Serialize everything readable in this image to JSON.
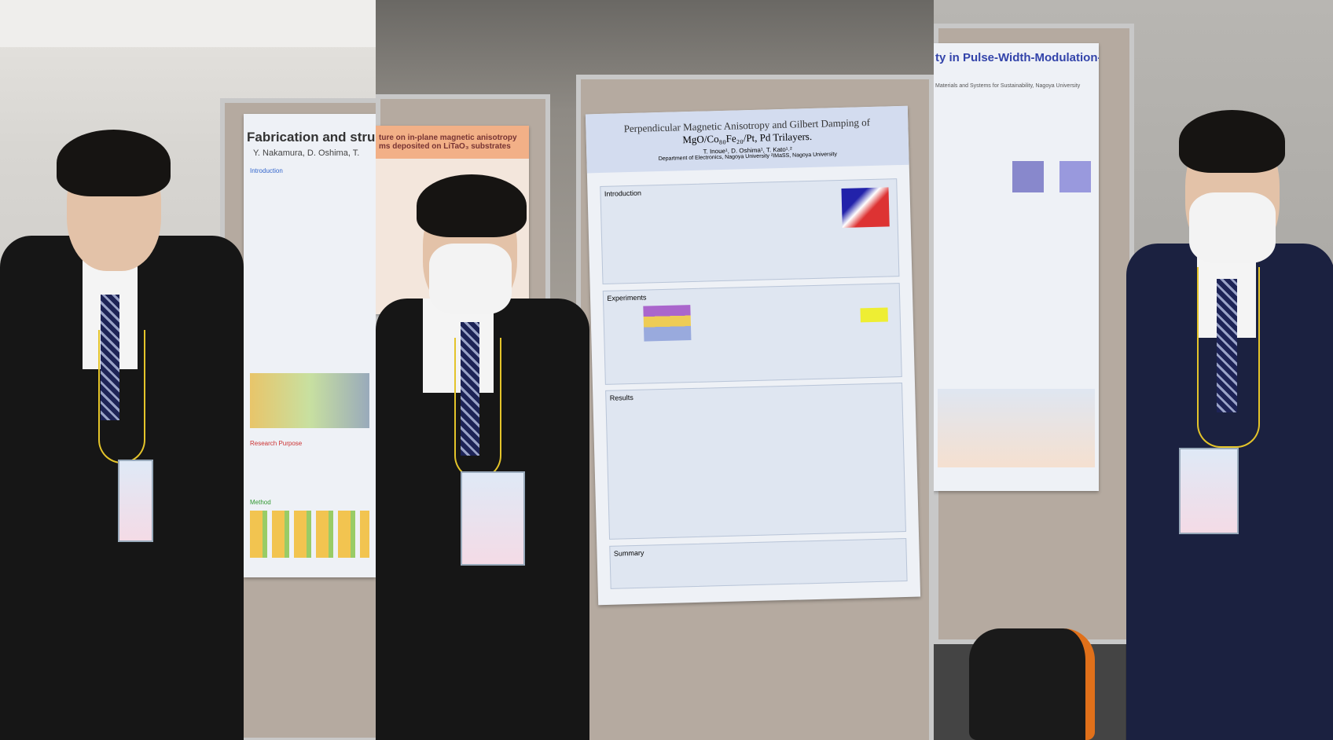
{
  "panels": [
    {
      "poster": {
        "title": "Fabrication and structur",
        "authors": "Y. Nakamura, D. Oshima, T.",
        "sections": [
          "Introduction",
          "Research Purpose",
          "Method"
        ]
      },
      "back_poster": {
        "title": "ture on in-plane magnetic anisotropy",
        "subtitle": "ms deposited on LiTaO₃ substrates"
      }
    },
    {
      "poster": {
        "title": "Perpendicular Magnetic Anisotropy and Gilbert Damping of",
        "title_line2": "MgO/Co₈₀Fe₂₀/Pt, Pd Trilayers.",
        "authors": "T. Inoue¹, D. Oshima¹, T. Kato¹˒²",
        "affiliation": "Department of Electronics, Nagoya University ²IMaSS, Nagoya University",
        "sections": [
          "Introduction",
          "Experiments",
          "Results",
          "Summary"
        ]
      }
    },
    {
      "poster": {
        "title": "ty in Pulse-Width-Modulation-type",
        "affiliation": "Materials and Systems for Sustainability, Nagoya University"
      }
    }
  ]
}
